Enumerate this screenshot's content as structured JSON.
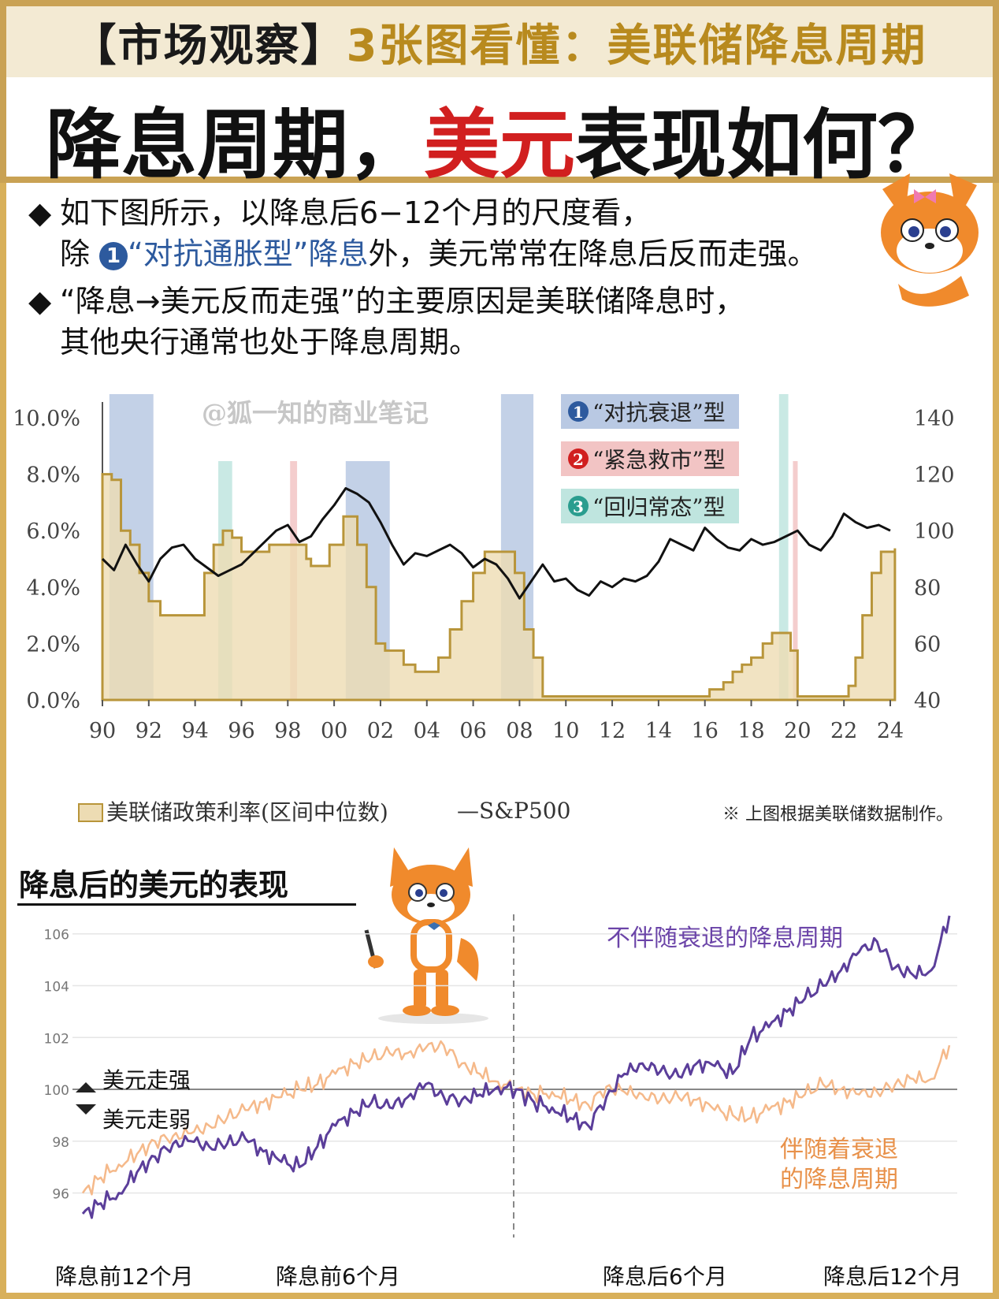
{
  "header": {
    "subtitle_part1": "【市场观察】",
    "subtitle_part2": "3张图看懂：美联储降息周期",
    "title_part1": "降息周期，",
    "title_part2": "美元",
    "title_part3": "表现如何？"
  },
  "bullets": {
    "b1_line1": "如下图所示，以降息后6−12个月的尺度看，",
    "b1_line2_pre": "除 ",
    "b1_num": "1",
    "b1_highlight": "“对抗通胀型”降息",
    "b1_line2_post": "外，美元常常在降息后反而走强。",
    "b2_line1": "“降息→美元反而走强”的主要原因是美联储降息时，",
    "b2_line2": "其他央行通常也处于降息周期。"
  },
  "chart1": {
    "watermark": "@狐一知的商业笔记",
    "legend_types": [
      {
        "num": "1",
        "label": "“对抗衰退”型",
        "color": "#b9c9e3",
        "numcolor": "#2d5a9e"
      },
      {
        "num": "2",
        "label": "“紧急救市”型",
        "color": "#f2c4c4",
        "numcolor": "#d11f1f"
      },
      {
        "num": "3",
        "label": "“回归常态”型",
        "color": "#bfe5df",
        "numcolor": "#2a9d8f"
      }
    ],
    "left_ticks": [
      "0.0%",
      "2.0%",
      "4.0%",
      "6.0%",
      "8.0%",
      "10.0%"
    ],
    "right_ticks": [
      "40",
      "60",
      "80",
      "100",
      "120",
      "140"
    ],
    "x_ticks": [
      "90",
      "92",
      "94",
      "96",
      "98",
      "00",
      "02",
      "04",
      "06",
      "08",
      "10",
      "12",
      "14",
      "16",
      "18",
      "20",
      "22",
      "24"
    ],
    "legend_rate": "美联储政策利率(区间中位数)",
    "legend_sp": "—S&P500",
    "note": "※ 上图根据美联储数据制作。",
    "colors": {
      "rate_fill": "#eddcb3",
      "rate_line": "#b8953a",
      "sp": "#111111"
    }
  },
  "chart2": {
    "title": "降息后的美元的表现",
    "y_ticks": [
      "96",
      "98",
      "100",
      "102",
      "104",
      "106"
    ],
    "label_purple": "不伴随衰退的降息周期",
    "label_orange_1": "伴随着衰退",
    "label_orange_2": "的降息周期",
    "label_up": "美元走强",
    "label_down": "美元走弱",
    "x_labels": [
      "降息前12个月",
      "降息前6个月",
      "降息后6个月",
      "降息后12个月"
    ],
    "colors": {
      "purple": "#5b3e9a",
      "orange": "#f5b98a",
      "purple_text": "#6b44a8",
      "orange_text": "#e8914a"
    }
  },
  "chart_data": [
    {
      "type": "area",
      "left_ylim": [
        0,
        10
      ],
      "right_ylim": [
        40,
        140
      ],
      "xlim": [
        1990,
        2024
      ],
      "series": [
        {
          "name": "美联储政策利率(区间中位数)",
          "x": [
            1990.0,
            1990.4,
            1990.8,
            1991.2,
            1991.6,
            1992.0,
            1992.5,
            1993.0,
            1993.5,
            1994.0,
            1994.4,
            1994.8,
            1995.2,
            1995.6,
            1996.0,
            1996.6,
            1997.2,
            1997.8,
            1998.5,
            1998.8,
            1999.0,
            1999.4,
            1999.8,
            2000.4,
            2000.8,
            2001.0,
            2001.4,
            2001.8,
            2002.2,
            2002.6,
            2003.0,
            2003.5,
            2004.0,
            2004.5,
            2005.0,
            2005.5,
            2006.0,
            2006.5,
            2007.0,
            2007.5,
            2007.8,
            2008.2,
            2008.6,
            2009.0,
            2010.0,
            2012.0,
            2014.0,
            2015.8,
            2016.2,
            2016.8,
            2017.2,
            2017.6,
            2018.0,
            2018.5,
            2018.9,
            2019.4,
            2019.7,
            2020.0,
            2020.3,
            2021.0,
            2021.9,
            2022.2,
            2022.5,
            2022.8,
            2023.2,
            2023.6,
            2024.2
          ],
          "values": [
            8.0,
            7.8,
            6.0,
            5.5,
            4.5,
            3.5,
            3.0,
            3.0,
            3.0,
            3.0,
            4.5,
            5.5,
            6.0,
            5.75,
            5.25,
            5.25,
            5.5,
            5.5,
            5.5,
            5.0,
            4.75,
            4.75,
            5.5,
            6.5,
            6.5,
            5.5,
            4.0,
            2.0,
            1.75,
            1.75,
            1.25,
            1.0,
            1.0,
            1.5,
            2.5,
            3.5,
            4.5,
            5.25,
            5.25,
            5.25,
            4.5,
            2.5,
            1.5,
            0.125,
            0.125,
            0.125,
            0.125,
            0.125,
            0.375,
            0.625,
            1.0,
            1.25,
            1.5,
            2.0,
            2.375,
            2.375,
            1.75,
            0.125,
            0.125,
            0.125,
            0.125,
            0.5,
            1.5,
            3.0,
            4.5,
            5.25,
            5.375
          ]
        },
        {
          "name": "S&P500",
          "x": [
            1990.0,
            1990.5,
            1991.0,
            1991.5,
            1992.0,
            1992.5,
            1993.0,
            1993.5,
            1994.0,
            1994.5,
            1995.0,
            1995.5,
            1996.0,
            1996.5,
            1997.0,
            1997.5,
            1998.0,
            1998.5,
            1999.0,
            1999.5,
            2000.0,
            2000.5,
            2001.0,
            2001.5,
            2002.0,
            2002.5,
            2003.0,
            2003.5,
            2004.0,
            2004.5,
            2005.0,
            2005.5,
            2006.0,
            2006.5,
            2007.0,
            2007.5,
            2008.0,
            2008.5,
            2009.0,
            2009.5,
            2010.0,
            2010.5,
            2011.0,
            2011.5,
            2012.0,
            2012.5,
            2013.0,
            2013.5,
            2014.0,
            2014.5,
            2015.0,
            2015.5,
            2016.0,
            2016.5,
            2017.0,
            2017.5,
            2018.0,
            2018.5,
            2019.0,
            2019.5,
            2020.0,
            2020.5,
            2021.0,
            2021.5,
            2022.0,
            2022.5,
            2023.0,
            2023.5,
            2024.0
          ],
          "values": [
            90,
            86,
            95,
            88,
            82,
            90,
            94,
            95,
            90,
            87,
            84,
            86,
            88,
            92,
            96,
            100,
            102,
            96,
            98,
            104,
            109,
            115,
            113,
            110,
            103,
            95,
            88,
            92,
            91,
            93,
            95,
            92,
            87,
            90,
            88,
            83,
            76,
            82,
            88,
            82,
            83,
            79,
            77,
            82,
            80,
            83,
            82,
            84,
            89,
            97,
            95,
            93,
            101,
            97,
            94,
            93,
            97,
            95,
            96,
            98,
            100,
            95,
            93,
            98,
            106,
            103,
            101,
            102,
            100
          ]
        }
      ],
      "shaded_periods": [
        {
          "type": "1",
          "start": 1990.3,
          "end": 1992.2
        },
        {
          "type": "3",
          "start": 1995.0,
          "end": 1995.6
        },
        {
          "type": "2",
          "start": 1998.1,
          "end": 1998.4
        },
        {
          "type": "1",
          "start": 2000.5,
          "end": 2002.4
        },
        {
          "type": "1",
          "start": 2007.2,
          "end": 2008.6
        },
        {
          "type": "3",
          "start": 2019.2,
          "end": 2019.6
        },
        {
          "type": "2",
          "start": 2019.8,
          "end": 2020.0
        }
      ]
    },
    {
      "type": "line",
      "ylim": [
        95,
        107
      ],
      "xlim": [
        -12,
        12
      ],
      "series": [
        {
          "name": "不伴随衰退的降息周期",
          "x": [
            -12,
            -11.5,
            -11,
            -10.5,
            -10,
            -9.5,
            -9,
            -8.5,
            -8,
            -7.5,
            -7,
            -6.5,
            -6,
            -5.5,
            -5,
            -4.5,
            -4,
            -3.5,
            -3,
            -2.5,
            -2,
            -1.5,
            -1,
            -0.5,
            0,
            0.5,
            1,
            1.5,
            2,
            2.5,
            3,
            3.5,
            4,
            4.5,
            5,
            5.5,
            6,
            6.5,
            7,
            7.5,
            8,
            8.5,
            9,
            9.5,
            10,
            10.5,
            11,
            11.5,
            12
          ],
          "values": [
            95.2,
            95.6,
            96.0,
            96.8,
            97.4,
            97.9,
            98.0,
            97.8,
            97.9,
            98.1,
            97.6,
            97.2,
            97.0,
            97.8,
            98.6,
            99.1,
            99.5,
            99.3,
            99.7,
            100.2,
            99.7,
            99.6,
            99.8,
            100.1,
            100.0,
            99.5,
            99.3,
            98.9,
            98.6,
            99.7,
            100.6,
            101.0,
            100.7,
            100.5,
            101.0,
            100.9,
            100.6,
            102.0,
            102.4,
            103.0,
            103.5,
            104.0,
            104.6,
            105.3,
            105.7,
            104.7,
            104.4,
            104.6,
            106.7
          ]
        },
        {
          "name": "伴随着衰退的降息周期",
          "x": [
            -12,
            -11.5,
            -11,
            -10.5,
            -10,
            -9.5,
            -9,
            -8.5,
            -8,
            -7.5,
            -7,
            -6.5,
            -6,
            -5.5,
            -5,
            -4.5,
            -4,
            -3.5,
            -3,
            -2.5,
            -2,
            -1.5,
            -1,
            -0.5,
            0,
            0.5,
            1,
            1.5,
            2,
            2.5,
            3,
            3.5,
            4,
            4.5,
            5,
            5.5,
            6,
            6.5,
            7,
            7.5,
            8,
            8.5,
            9,
            9.5,
            10,
            10.5,
            11,
            11.5,
            12
          ],
          "values": [
            96.0,
            96.6,
            97.1,
            97.5,
            98.0,
            98.2,
            98.3,
            98.6,
            98.9,
            99.2,
            99.5,
            99.7,
            100.0,
            100.2,
            100.6,
            101.0,
            101.2,
            101.4,
            101.4,
            101.6,
            101.7,
            101.0,
            100.6,
            100.3,
            100.0,
            99.8,
            99.9,
            99.6,
            99.4,
            100.1,
            99.9,
            99.8,
            99.6,
            99.7,
            99.6,
            99.2,
            99.0,
            98.9,
            99.2,
            99.5,
            99.8,
            100.2,
            100.0,
            99.8,
            99.9,
            100.2,
            100.4,
            100.4,
            101.7
          ]
        }
      ]
    }
  ]
}
